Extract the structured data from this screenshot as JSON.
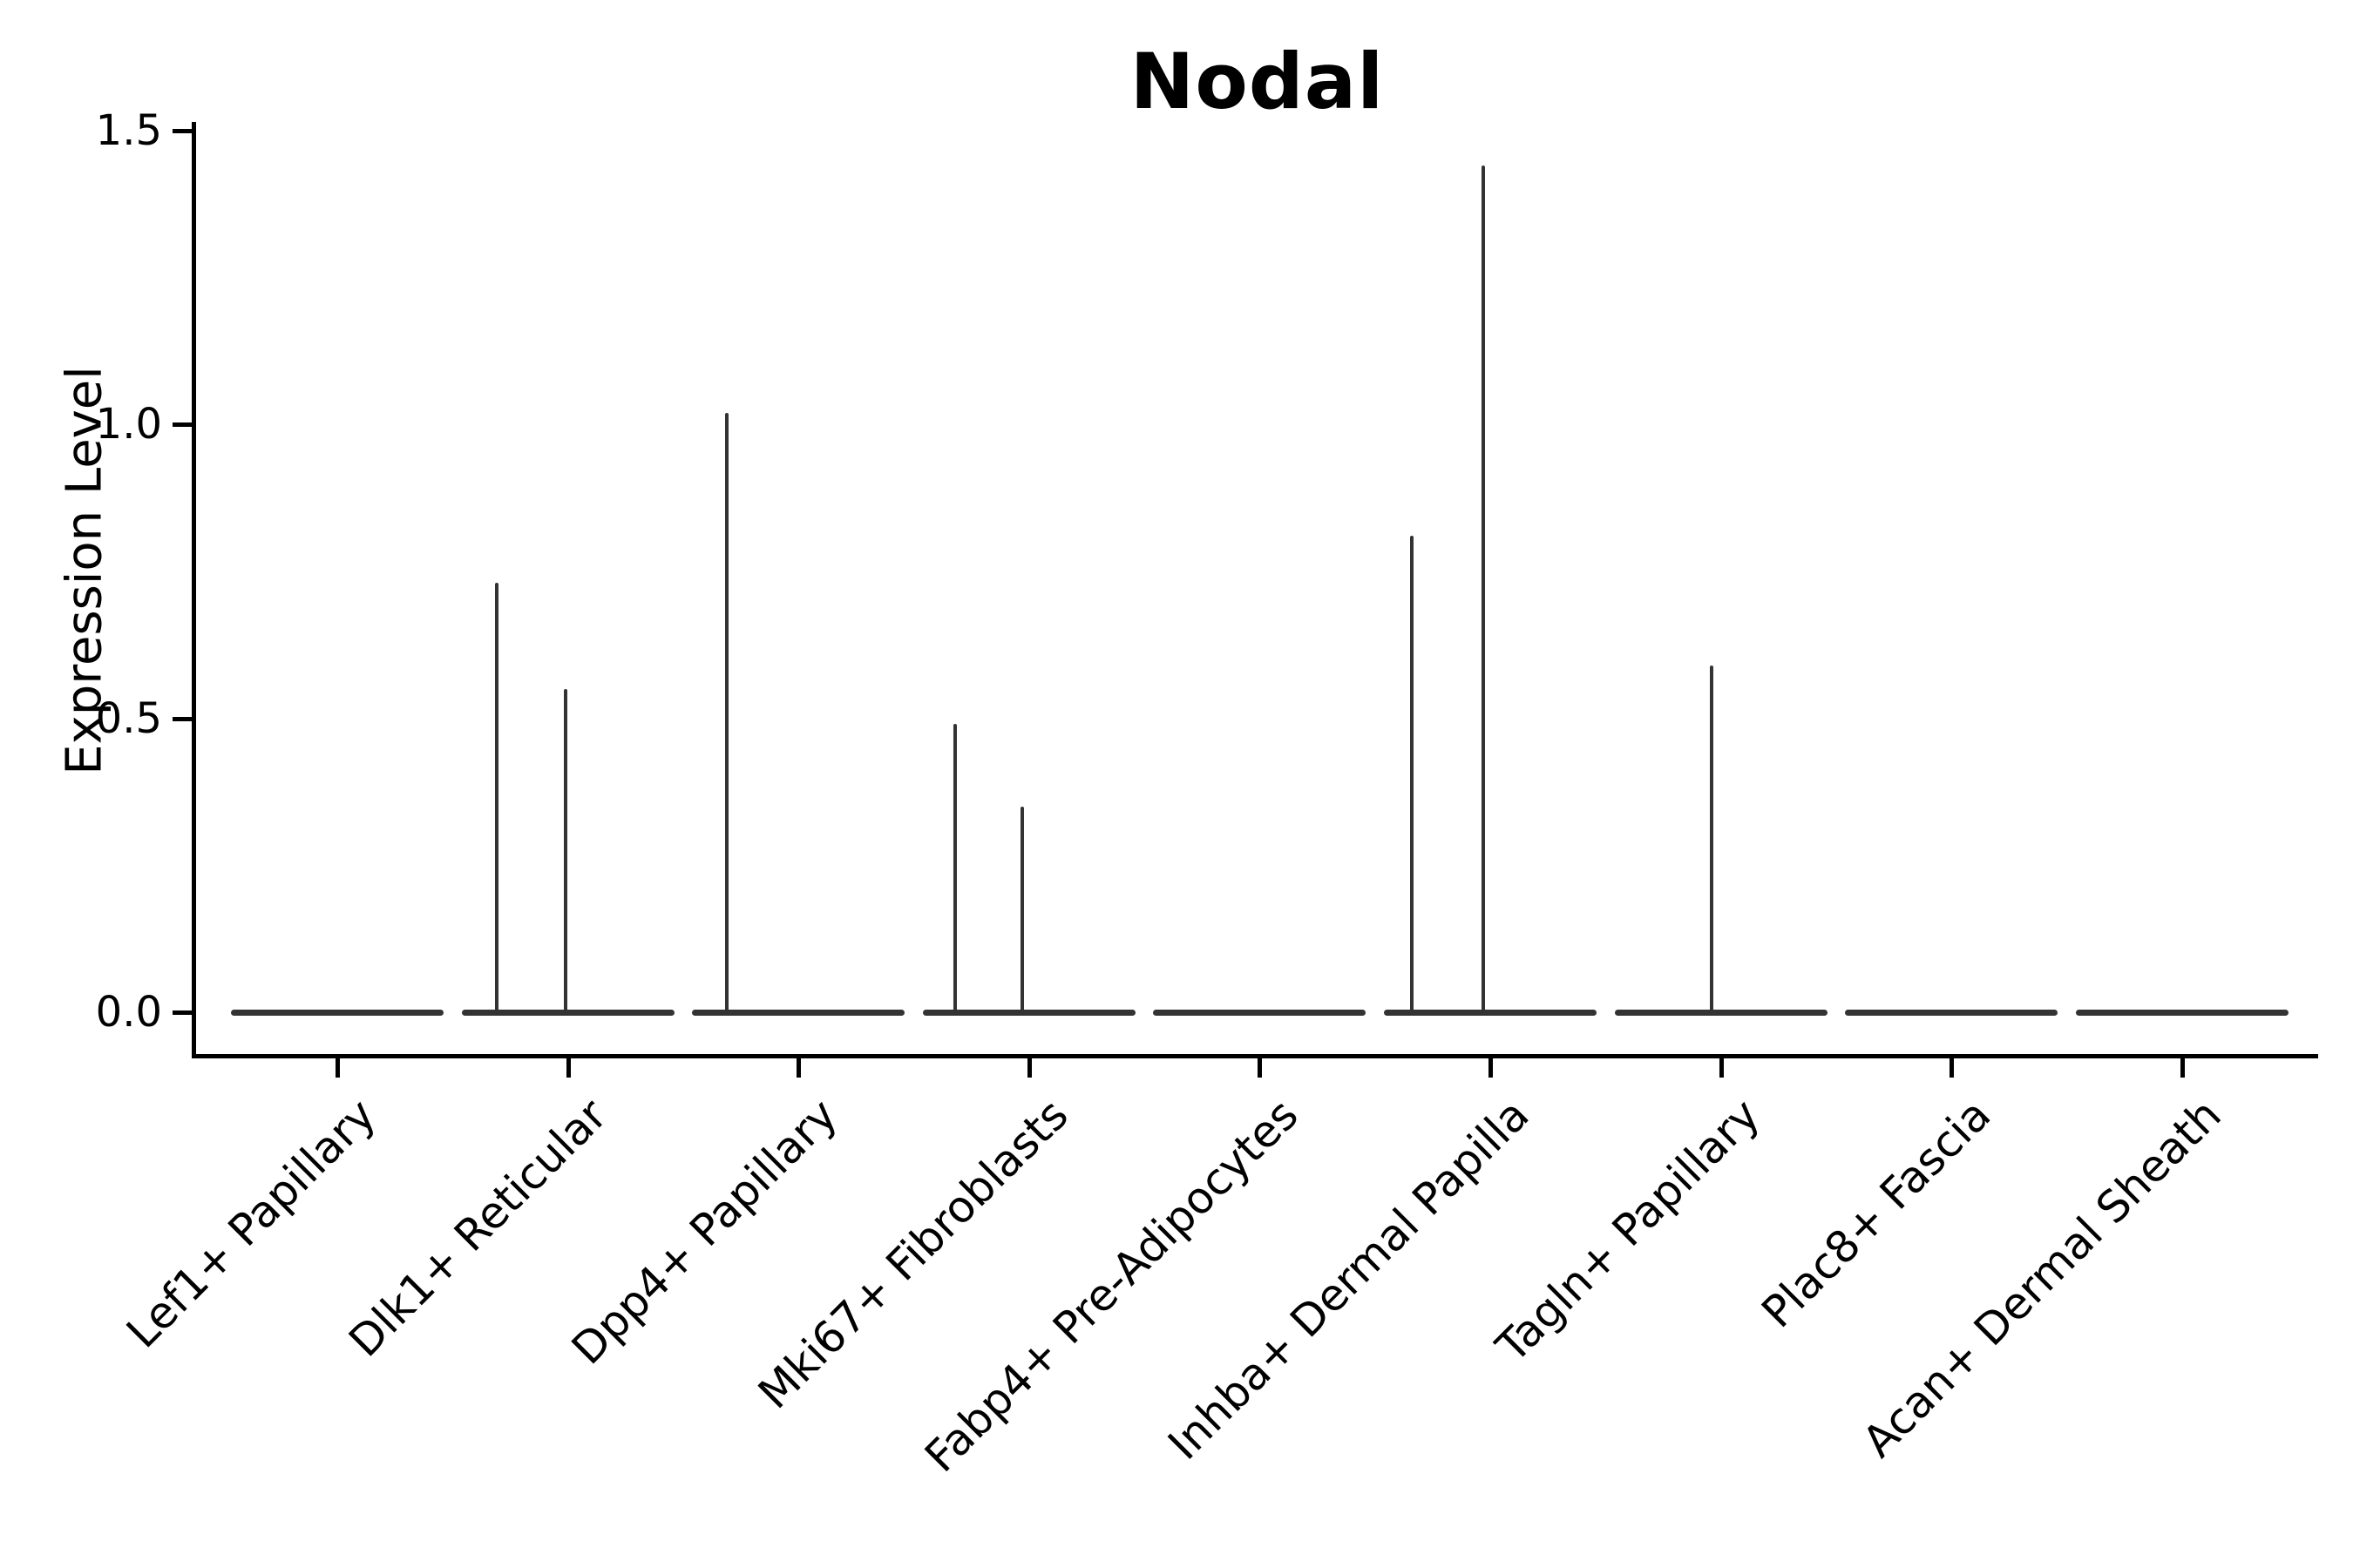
{
  "chart_data": {
    "type": "violin",
    "title": "Nodal",
    "xlabel": "",
    "ylabel": "Expression Level",
    "ylim": [
      -0.07,
      1.5
    ],
    "yticks": [
      "0.0",
      "0.5",
      "1.0",
      "1.5"
    ],
    "ytick_values": [
      0.0,
      0.5,
      1.0,
      1.5
    ],
    "grid": "off",
    "legend": "none",
    "violin_color": "#333333",
    "axis_color": "#000000",
    "background_color": "#ffffff",
    "description": "Single-gene violin plot; each category shows a flat collapsed violin at expression 0, with thin vertical density spikes rising to the maximum expression of rare expressing cells.",
    "categories": [
      {
        "label": "Lef1+ Papillary",
        "spikes": []
      },
      {
        "label": "Dlk1+ Reticular",
        "spikes": [
          {
            "x_offset_frac": -0.31,
            "value": 0.73
          },
          {
            "x_offset_frac": -0.01,
            "value": 0.55
          }
        ]
      },
      {
        "label": "Dpp4+ Papillary",
        "spikes": [
          {
            "x_offset_frac": -0.31,
            "value": 1.02
          }
        ]
      },
      {
        "label": "Mki67+ Fibroblasts",
        "spikes": [
          {
            "x_offset_frac": -0.32,
            "value": 0.49
          },
          {
            "x_offset_frac": -0.03,
            "value": 0.35
          }
        ]
      },
      {
        "label": "Fabp4+ Pre-Adipocytes",
        "spikes": []
      },
      {
        "label": "Inhba+ Dermal Papilla",
        "spikes": [
          {
            "x_offset_frac": -0.34,
            "value": 0.81
          },
          {
            "x_offset_frac": -0.03,
            "value": 1.44
          }
        ]
      },
      {
        "label": "Tagln+ Papillary",
        "spikes": [
          {
            "x_offset_frac": -0.04,
            "value": 0.59
          }
        ]
      },
      {
        "label": "Plac8+ Fascia",
        "spikes": []
      },
      {
        "label": "Acan+ Dermal Sheath",
        "spikes": []
      }
    ]
  }
}
